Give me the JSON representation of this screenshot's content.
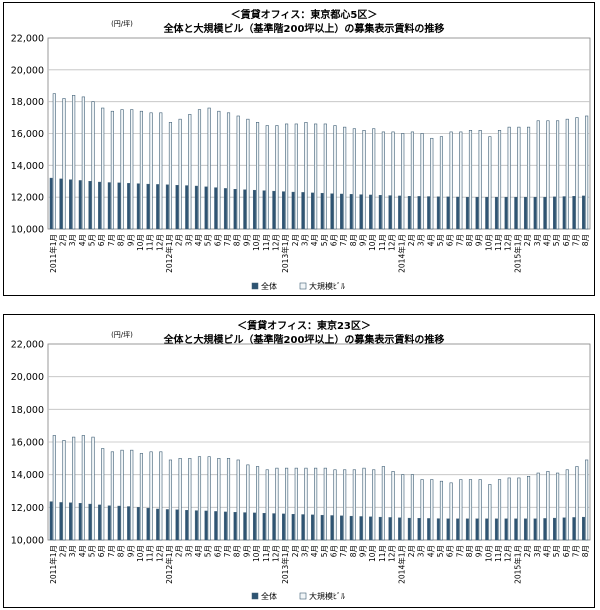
{
  "charts": [
    {
      "title1": "＜賃貸オフィス：東京都心5区＞",
      "title2": "全体と大規模ビル（基準階200坪以上）の募集表示賃料の推移",
      "unit": "(円/坪)"
    },
    {
      "title1": "＜賃貸オフィス：東京23区＞",
      "title2": "全体と大規模ビル（基準階200坪以上）の募集表示賃料の推移",
      "unit": "(円/坪)"
    }
  ],
  "colors": {
    "zentai": "#2e5473",
    "daikibo": "#f2f6f8",
    "bar_stroke": "#3d5d74",
    "grid": "#bfbfbf"
  },
  "chart_data": [
    {
      "type": "bar",
      "ylim": [
        10000,
        22000
      ],
      "yticks": [
        "22,000",
        "20,000",
        "18,000",
        "16,000",
        "14,000",
        "12,000",
        "10,000"
      ],
      "grid": true,
      "legend_position": "bottom",
      "categories": [
        "2011年1月",
        "2月",
        "3月",
        "4月",
        "5月",
        "6月",
        "7月",
        "8月",
        "9月",
        "10月",
        "11月",
        "12月",
        "2012年1月",
        "2月",
        "3月",
        "4月",
        "5月",
        "6月",
        "7月",
        "8月",
        "9月",
        "10月",
        "11月",
        "12月",
        "2013年1月",
        "2月",
        "3月",
        "4月",
        "5月",
        "6月",
        "7月",
        "8月",
        "9月",
        "10月",
        "11月",
        "12月",
        "2014年1月",
        "2月",
        "3月",
        "4月",
        "5月",
        "6月",
        "7月",
        "8月",
        "9月",
        "10月",
        "11月",
        "12月",
        "2015年1月",
        "2月",
        "3月",
        "4月",
        "5月",
        "6月",
        "7月",
        "8月"
      ],
      "series": [
        {
          "name": "全体",
          "values": [
            13200,
            13150,
            13100,
            13050,
            13000,
            12950,
            12920,
            12900,
            12870,
            12850,
            12820,
            12800,
            12780,
            12750,
            12730,
            12700,
            12650,
            12600,
            12550,
            12500,
            12470,
            12440,
            12410,
            12380,
            12350,
            12320,
            12300,
            12270,
            12250,
            12220,
            12200,
            12180,
            12160,
            12140,
            12120,
            12100,
            12080,
            12060,
            12050,
            12040,
            12030,
            12020,
            12010,
            12000,
            12000,
            12000,
            12000,
            12000,
            12000,
            12000,
            12000,
            12000,
            12020,
            12040,
            12060,
            12080
          ]
        },
        {
          "name": "大規模ﾋﾞﾙ",
          "values": [
            18500,
            18200,
            18400,
            18300,
            18000,
            17600,
            17400,
            17500,
            17500,
            17400,
            17300,
            17300,
            16700,
            16900,
            17200,
            17500,
            17600,
            17400,
            17300,
            17100,
            16900,
            16700,
            16500,
            16500,
            16600,
            16600,
            16700,
            16600,
            16600,
            16500,
            16400,
            16300,
            16200,
            16300,
            16100,
            16100,
            16000,
            16100,
            16000,
            15700,
            15800,
            16100,
            16100,
            16200,
            16200,
            15800,
            16200,
            16400,
            16400,
            16400,
            16800,
            16800,
            16800,
            16900,
            17000,
            17100
          ]
        }
      ]
    },
    {
      "type": "bar",
      "ylim": [
        10000,
        22000
      ],
      "yticks": [
        "22,000",
        "20,000",
        "18,000",
        "16,000",
        "14,000",
        "12,000",
        "10,000"
      ],
      "grid": true,
      "legend_position": "bottom",
      "categories": [
        "2011年1月",
        "2月",
        "3月",
        "4月",
        "5月",
        "6月",
        "7月",
        "8月",
        "9月",
        "10月",
        "11月",
        "12月",
        "2012年1月",
        "2月",
        "3月",
        "4月",
        "5月",
        "6月",
        "7月",
        "8月",
        "9月",
        "10月",
        "11月",
        "12月",
        "2013年1月",
        "2月",
        "3月",
        "4月",
        "5月",
        "6月",
        "7月",
        "8月",
        "9月",
        "10月",
        "11月",
        "12月",
        "2014年1月",
        "2月",
        "3月",
        "4月",
        "5月",
        "6月",
        "7月",
        "8月",
        "9月",
        "10月",
        "11月",
        "12月",
        "2015年1月",
        "2月",
        "3月",
        "4月",
        "5月",
        "6月",
        "7月",
        "8月"
      ],
      "series": [
        {
          "name": "全体",
          "values": [
            12350,
            12300,
            12280,
            12250,
            12200,
            12150,
            12100,
            12080,
            12050,
            12000,
            11950,
            11900,
            11870,
            11850,
            11820,
            11800,
            11780,
            11750,
            11720,
            11700,
            11680,
            11660,
            11640,
            11620,
            11600,
            11580,
            11560,
            11540,
            11520,
            11500,
            11480,
            11460,
            11440,
            11420,
            11400,
            11380,
            11360,
            11340,
            11330,
            11320,
            11310,
            11300,
            11300,
            11300,
            11300,
            11300,
            11300,
            11300,
            11300,
            11300,
            11300,
            11320,
            11340,
            11360,
            11380,
            11400
          ]
        },
        {
          "name": "大規模ﾋﾞﾙ",
          "values": [
            16400,
            16100,
            16300,
            16400,
            16300,
            15600,
            15400,
            15500,
            15500,
            15300,
            15400,
            15400,
            14900,
            15000,
            15000,
            15100,
            15100,
            15000,
            15000,
            14900,
            14600,
            14500,
            14300,
            14400,
            14400,
            14400,
            14400,
            14400,
            14400,
            14300,
            14300,
            14300,
            14400,
            14300,
            14500,
            14200,
            14000,
            14000,
            13700,
            13700,
            13600,
            13500,
            13700,
            13700,
            13700,
            13400,
            13700,
            13800,
            13800,
            13900,
            14100,
            14200,
            14100,
            14300,
            14500,
            14900
          ]
        }
      ]
    }
  ]
}
